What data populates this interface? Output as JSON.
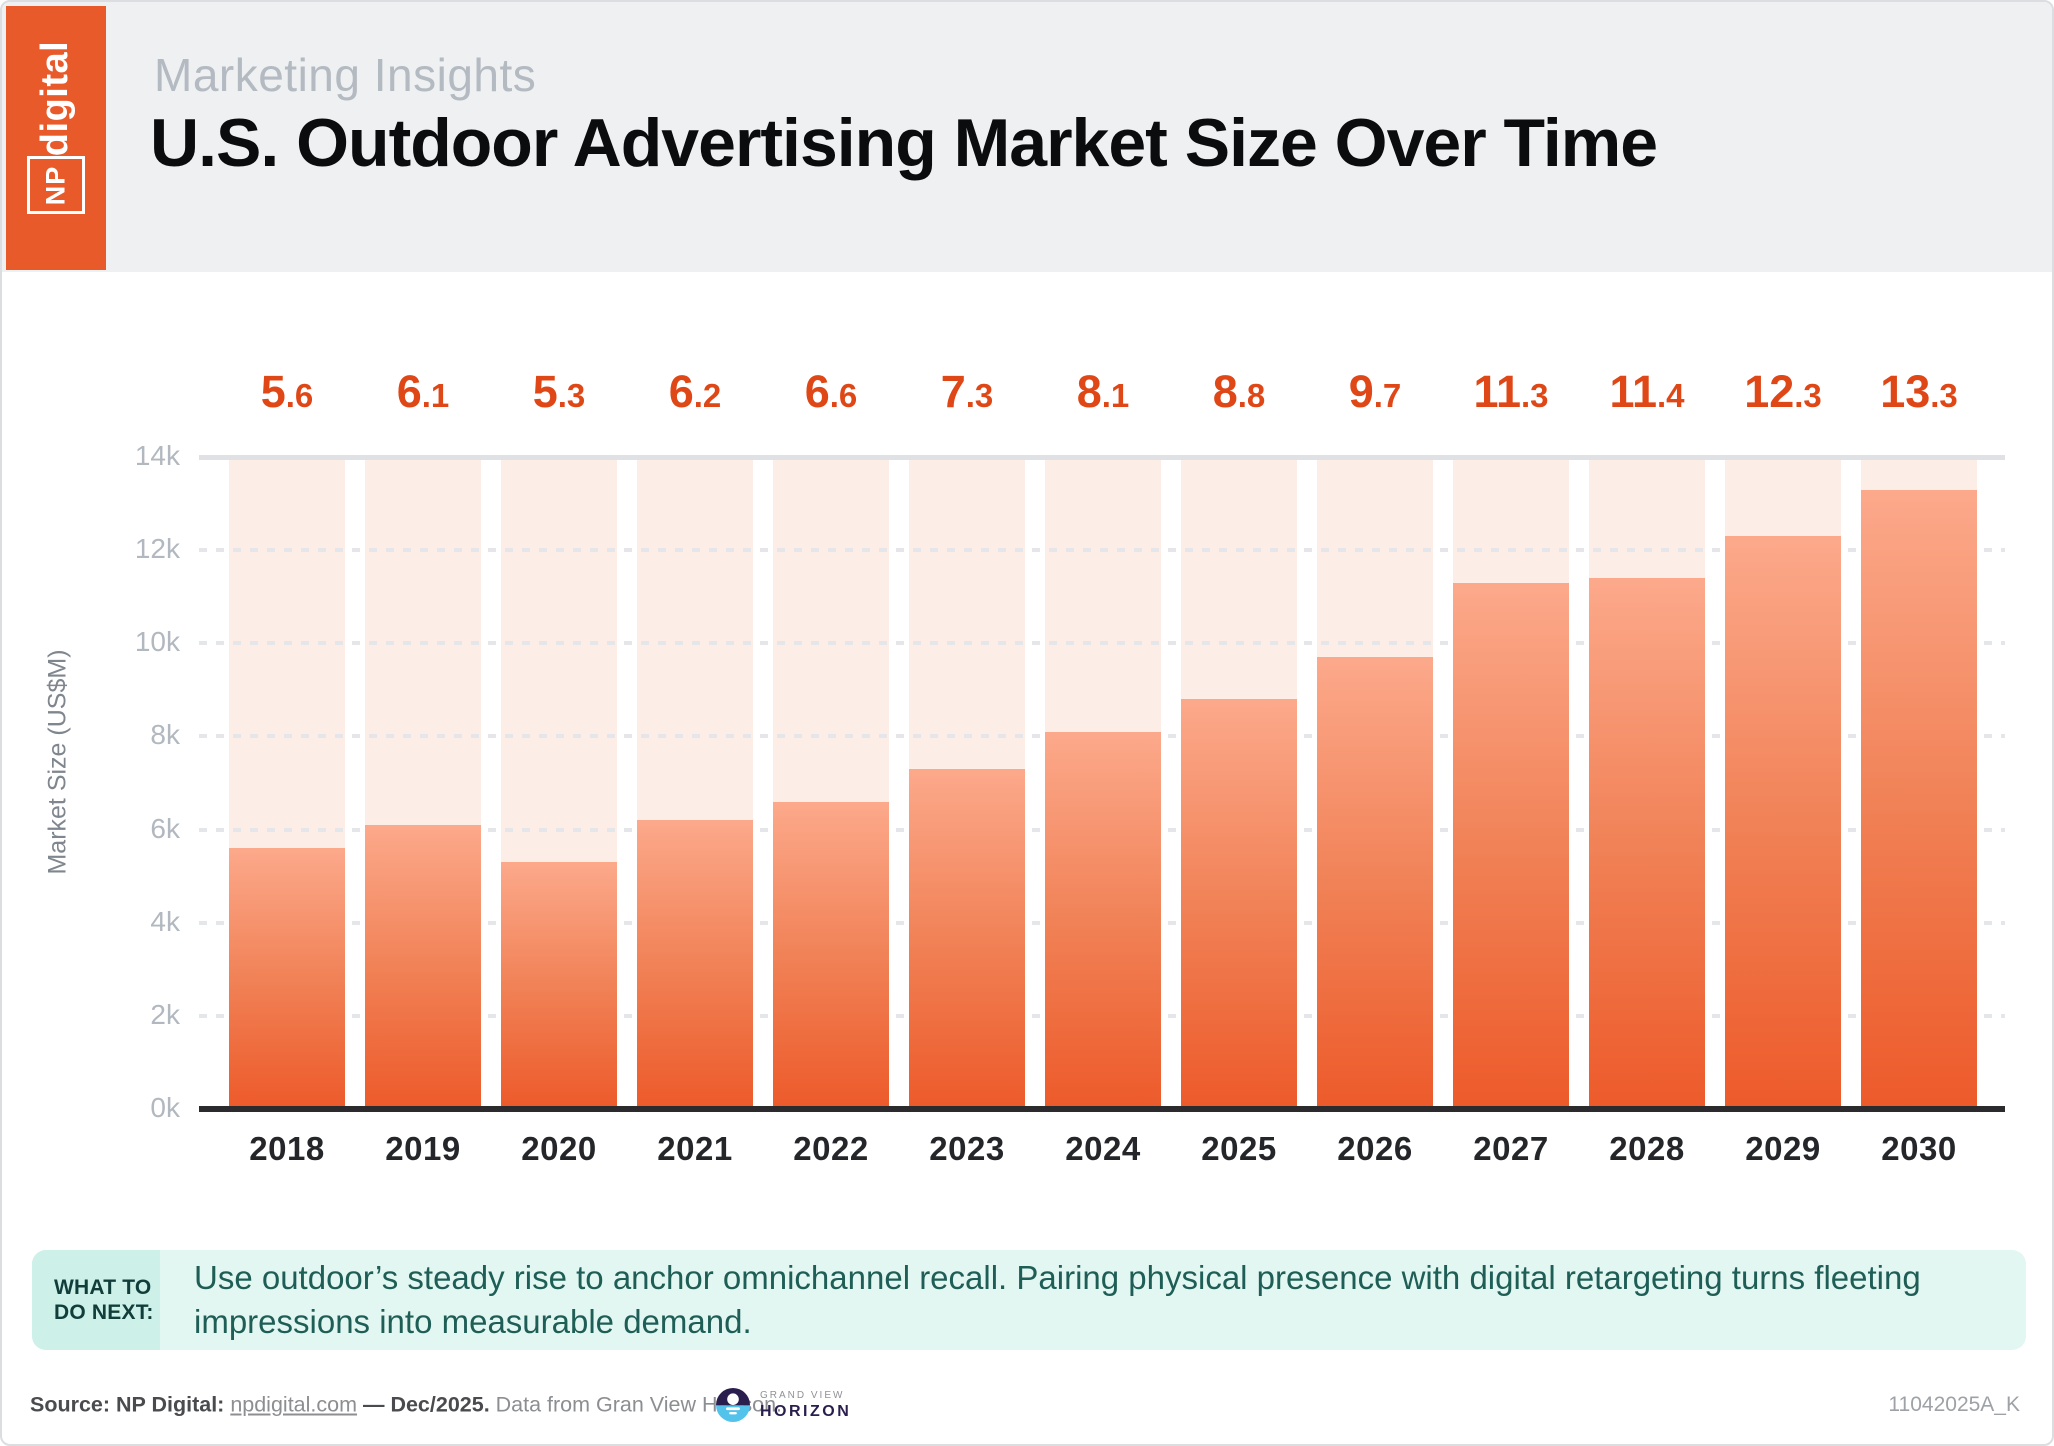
{
  "page": {
    "doc_id": "11042025A_K",
    "header_bg": "#EEF0F2",
    "accent_orange": "#E95A2B"
  },
  "logo": {
    "np": "NP",
    "digital": "digital"
  },
  "header": {
    "eyebrow": "Marketing Insights",
    "title": "U.S. Outdoor Advertising Market Size Over Time"
  },
  "chart_data": {
    "type": "bar",
    "title": "U.S. Outdoor Advertising Market Size Over Time",
    "categories": [
      "2018",
      "2019",
      "2020",
      "2021",
      "2022",
      "2023",
      "2024",
      "2025",
      "2026",
      "2027",
      "2028",
      "2029",
      "2030"
    ],
    "values": [
      5.6,
      6.1,
      5.3,
      6.2,
      6.6,
      7.3,
      8.1,
      8.8,
      9.7,
      11.3,
      11.4,
      12.3,
      13.3
    ],
    "value_labels": [
      "5.6",
      "6.1",
      "5.3",
      "6.2",
      "6.6",
      "7.3",
      "8.1",
      "8.8",
      "9.7",
      "11.3",
      "11.4",
      "12.3",
      "13.3"
    ],
    "xlabel": "",
    "ylabel": "Market Size (US$M)",
    "yticks": [
      "0k",
      "2k",
      "4k",
      "6k",
      "8k",
      "10k",
      "12k",
      "14k"
    ],
    "ylim": [
      0,
      14
    ],
    "grid": "horizontal-dashed",
    "legend": "none",
    "bar_color_top": "#FCA98B",
    "bar_color_bottom": "#ED5A2A",
    "bar_background_color": "#FCEDE6",
    "value_label_color": "#DF4717"
  },
  "callout": {
    "label": "WHAT TO DO NEXT:",
    "label_lines": [
      "WHAT TO",
      "DO NEXT:"
    ],
    "text": "Use outdoor’s steady rise to anchor omnichannel recall. Pairing physical presence with digital retargeting turns fleeting impressions into measurable demand."
  },
  "footer": {
    "source_prefix": "Source: NP Digital: ",
    "source_link": "npdigital.com",
    "source_mid": " — Dec/2025.",
    "source_rest": " Data from Gran View Horison.",
    "gv_top": "GRAND VIEW",
    "gv_bottom": "HORIZON",
    "doc_id": "11042025A_K"
  }
}
